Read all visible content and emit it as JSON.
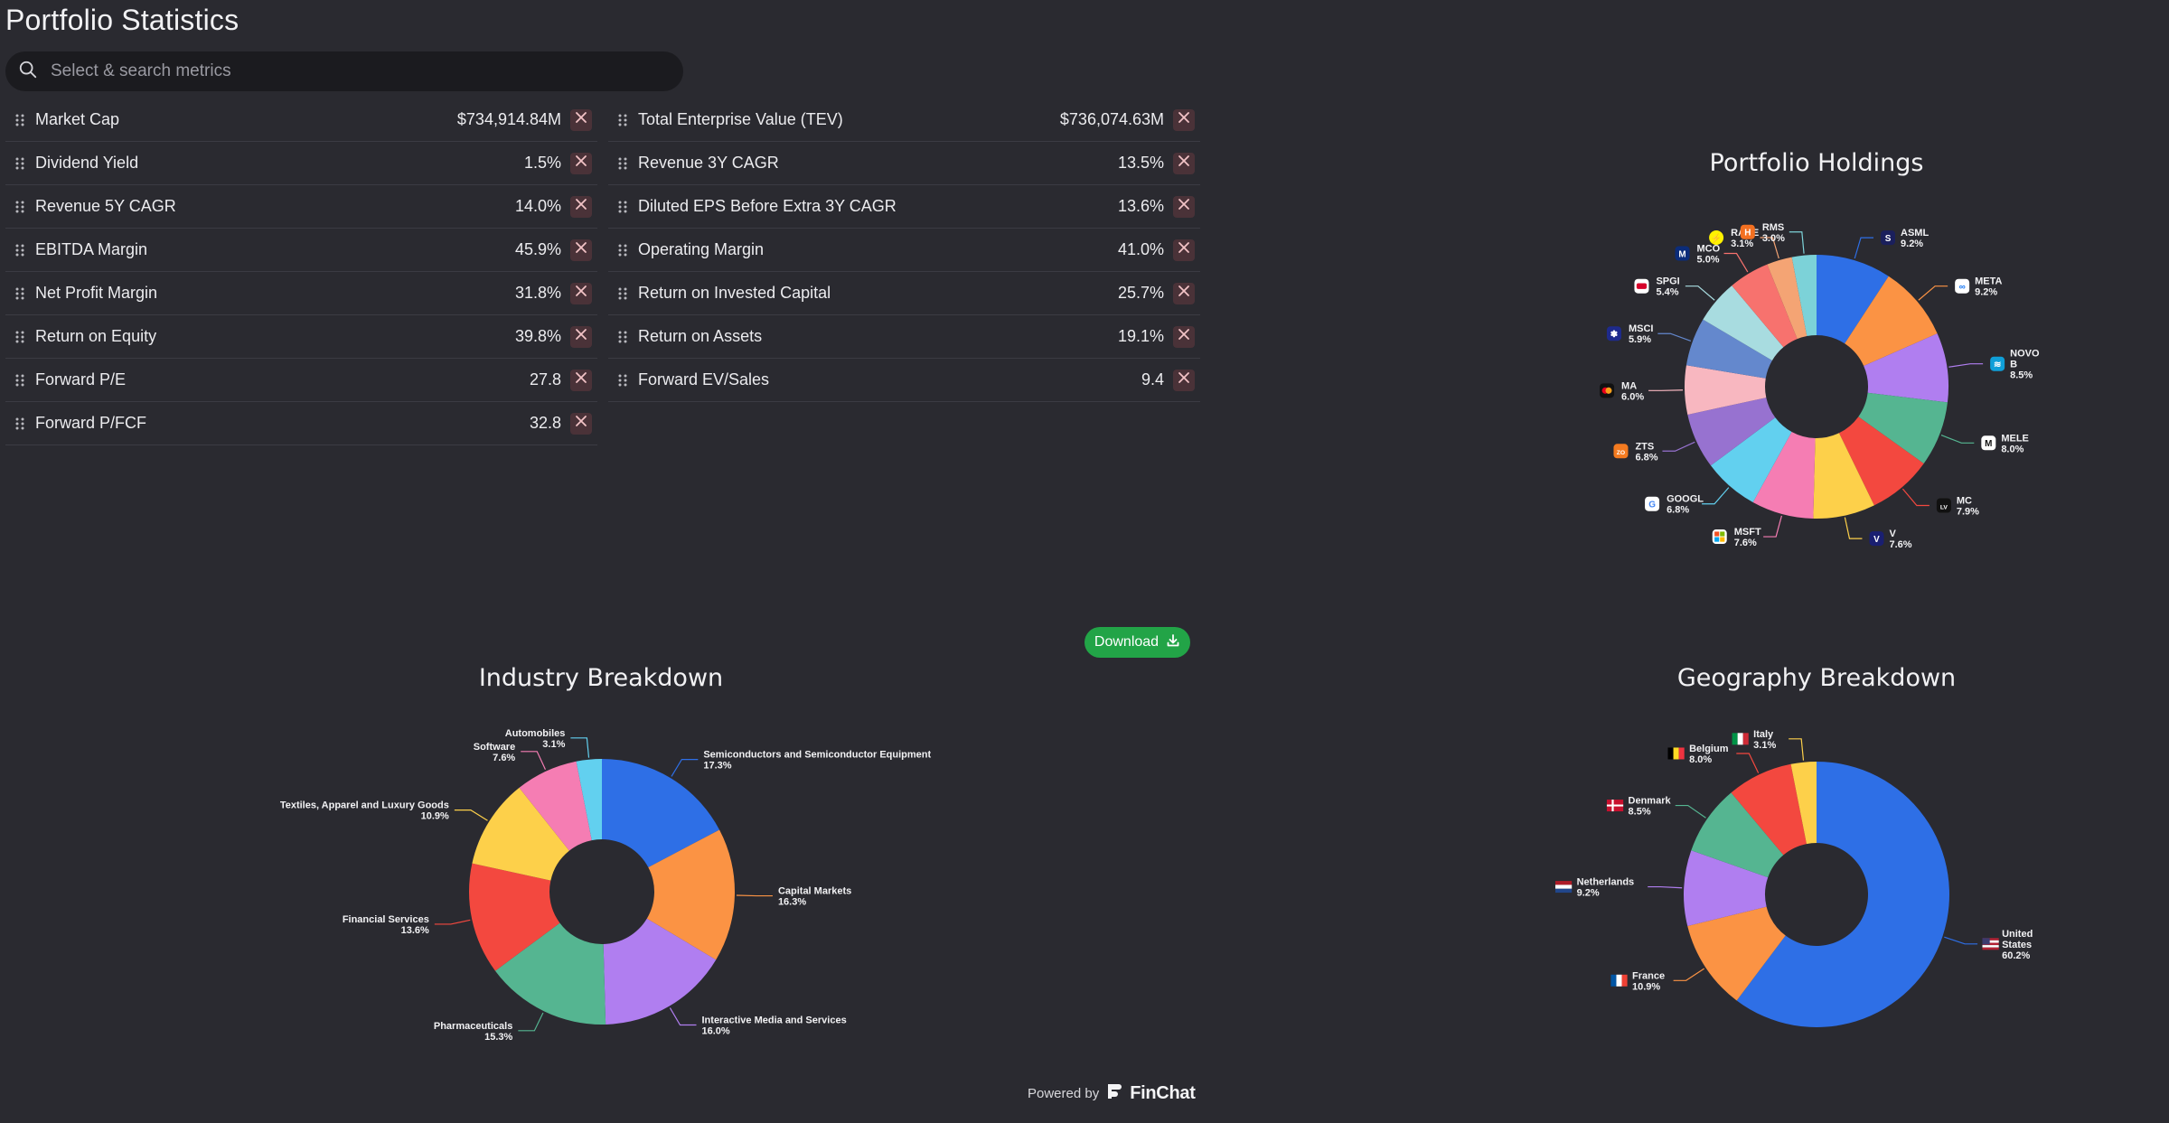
{
  "page": {
    "title": "Portfolio Statistics"
  },
  "search": {
    "placeholder": "Select & search metrics"
  },
  "metrics_left": [
    {
      "name": "Market Cap",
      "value": "$734,914.84M"
    },
    {
      "name": "Dividend Yield",
      "value": "1.5%"
    },
    {
      "name": "Revenue 5Y CAGR",
      "value": "14.0%"
    },
    {
      "name": "EBITDA Margin",
      "value": "45.9%"
    },
    {
      "name": "Net Profit Margin",
      "value": "31.8%"
    },
    {
      "name": "Return on Equity",
      "value": "39.8%"
    },
    {
      "name": "Forward P/E",
      "value": "27.8"
    },
    {
      "name": "Forward P/FCF",
      "value": "32.8"
    }
  ],
  "metrics_right": [
    {
      "name": "Total Enterprise Value (TEV)",
      "value": "$736,074.63M"
    },
    {
      "name": "Revenue 3Y CAGR",
      "value": "13.5%"
    },
    {
      "name": "Diluted EPS Before Extra 3Y CAGR",
      "value": "13.6%"
    },
    {
      "name": "Operating Margin",
      "value": "41.0%"
    },
    {
      "name": "Return on Invested Capital",
      "value": "25.7%"
    },
    {
      "name": "Return on Assets",
      "value": "19.1%"
    },
    {
      "name": "Forward EV/Sales",
      "value": "9.4"
    }
  ],
  "download": {
    "label": "Download"
  },
  "footer": {
    "powered_by": "Powered by",
    "brand": "FinChat"
  },
  "chart_data": [
    {
      "type": "pie",
      "title": "Portfolio Holdings",
      "donut": true,
      "categories": [
        "ASML",
        "META",
        "NOVO B",
        "MELE",
        "MC",
        "V",
        "MSFT",
        "GOOGL",
        "ZTS",
        "MA",
        "MSCI",
        "SPGI",
        "MCO",
        "RACE",
        "RMS"
      ],
      "values": [
        9.2,
        9.2,
        8.5,
        8.0,
        7.9,
        7.6,
        7.6,
        6.8,
        6.8,
        6.0,
        5.9,
        5.4,
        5.0,
        3.1,
        3.0
      ],
      "labels": [
        "9.2%",
        "9.2%",
        "8.5%",
        "8.0%",
        "7.9%",
        "7.6%",
        "7.6%",
        "6.8%",
        "6.8%",
        "6.0%",
        "5.9%",
        "5.4%",
        "5.0%",
        "3.1%",
        "3.0%"
      ],
      "colors": [
        "#2e6fe6",
        "#fb9344",
        "#b07ef0",
        "#55b591",
        "#f3483f",
        "#fdd04a",
        "#f57db3",
        "#62d0ef",
        "#9772d0",
        "#f8b7c0",
        "#6488cd",
        "#a8dce0",
        "#f7726e",
        "#f4a474",
        "#7cd2d8"
      ],
      "icons": [
        "asml-logo-icon",
        "meta-logo-icon",
        "novo-logo-icon",
        "mele-logo-icon",
        "lvmh-logo-icon",
        "visa-logo-icon",
        "microsoft-logo-icon",
        "google-logo-icon",
        "zoetis-logo-icon",
        "mastercard-logo-icon",
        "msci-logo-icon",
        "spgi-logo-icon",
        "moodys-logo-icon",
        "ferrari-logo-icon",
        "hermes-logo-icon"
      ]
    },
    {
      "type": "pie",
      "title": "Industry Breakdown",
      "donut": true,
      "categories": [
        "Semiconductors and Semiconductor Equipment",
        "Capital Markets",
        "Interactive Media and Services",
        "Pharmaceuticals",
        "Financial Services",
        "Textiles, Apparel and Luxury Goods",
        "Software",
        "Automobiles"
      ],
      "values": [
        17.3,
        16.3,
        16.0,
        15.3,
        13.6,
        10.9,
        7.6,
        3.1
      ],
      "labels": [
        "17.3%",
        "16.3%",
        "16.0%",
        "15.3%",
        "13.6%",
        "10.9%",
        "7.6%",
        "3.1%"
      ],
      "colors": [
        "#2e6fe6",
        "#fb9344",
        "#b07ef0",
        "#55b591",
        "#f3483f",
        "#fdd04a",
        "#f57db3",
        "#62d0ef"
      ]
    },
    {
      "type": "pie",
      "title": "Geography Breakdown",
      "donut": true,
      "categories": [
        "United States",
        "France",
        "Netherlands",
        "Denmark",
        "Belgium",
        "Italy"
      ],
      "values": [
        60.2,
        10.9,
        9.2,
        8.5,
        8.0,
        3.1
      ],
      "labels": [
        "60.2%",
        "10.9%",
        "9.2%",
        "8.5%",
        "8.0%",
        "3.1%"
      ],
      "colors": [
        "#2e6fe6",
        "#fb9344",
        "#b07ef0",
        "#55b591",
        "#f3483f",
        "#fdd04a"
      ],
      "icons": [
        "us-flag-icon",
        "france-flag-icon",
        "netherlands-flag-icon",
        "denmark-flag-icon",
        "belgium-flag-icon",
        "italy-flag-icon"
      ]
    }
  ]
}
